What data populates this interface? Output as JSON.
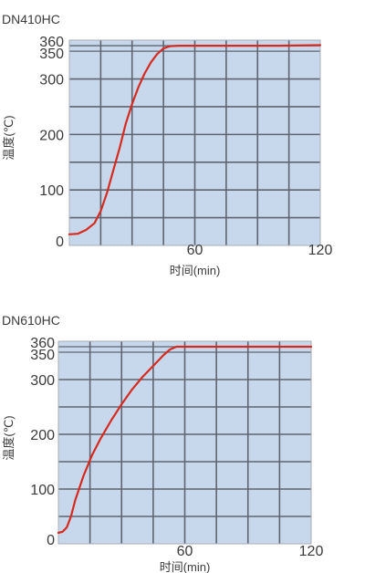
{
  "chart_data": [
    {
      "type": "line",
      "title": "DN410HC",
      "xlabel": "时间(min)",
      "ylabel": "温度(℃)",
      "xlim": [
        0,
        120
      ],
      "ylim": [
        0,
        370
      ],
      "x_ticks": [
        "60",
        "120"
      ],
      "y_ticks": [
        "0",
        "100",
        "200",
        "300",
        "350",
        "360"
      ],
      "x_origin_label": "0",
      "grid": true,
      "colors": {
        "plot_bg": "#c8d8ec",
        "grid": "#5f6470",
        "line": "#d62a1e"
      },
      "series": [
        {
          "x": [
            0,
            4,
            8,
            12,
            15,
            18,
            21,
            24,
            27,
            30,
            33,
            36,
            39,
            42,
            45,
            48,
            52,
            60,
            80,
            100,
            120
          ],
          "y": [
            20,
            21,
            28,
            40,
            62,
            95,
            135,
            175,
            220,
            255,
            285,
            310,
            330,
            345,
            355,
            359,
            360,
            360,
            360,
            360,
            361
          ]
        }
      ]
    },
    {
      "type": "line",
      "title": "DN610HC",
      "xlabel": "时间(min)",
      "ylabel": "温度(℃)",
      "xlim": [
        0,
        120
      ],
      "ylim": [
        0,
        370
      ],
      "x_ticks": [
        "60",
        "120"
      ],
      "y_ticks": [
        "0",
        "100",
        "200",
        "300",
        "350",
        "360"
      ],
      "x_origin_label": "0",
      "grid": true,
      "colors": {
        "plot_bg": "#c8d8ec",
        "grid": "#5f6470",
        "line": "#d62a1e"
      },
      "series": [
        {
          "x": [
            0,
            2,
            4,
            6,
            8,
            12,
            16,
            20,
            25,
            30,
            35,
            40,
            45,
            50,
            53,
            56,
            60,
            80,
            100,
            120
          ],
          "y": [
            20,
            22,
            30,
            50,
            80,
            125,
            162,
            192,
            225,
            255,
            282,
            305,
            325,
            345,
            355,
            360,
            360,
            360,
            360,
            360
          ]
        }
      ]
    }
  ]
}
